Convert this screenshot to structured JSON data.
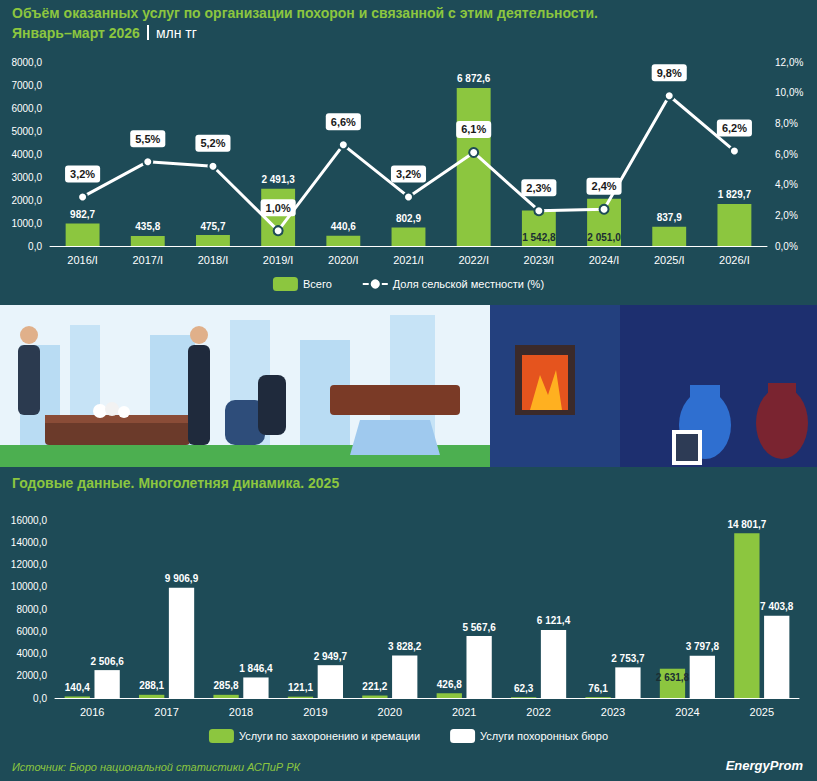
{
  "source": "Источник: Бюро национальной статистики АСПиР РК",
  "brand": "EnergyProm",
  "chart_data": [
    {
      "type": "bar",
      "title": "Объём оказанных услуг по организации похорон и связанной с этим деятельности.",
      "subtitle": "Январь–март 2026",
      "units": "млн тг",
      "categories": [
        "2016/I",
        "2017/I",
        "2018/I",
        "2019/I",
        "2020/I",
        "2021/I",
        "2022/I",
        "2023/I",
        "2024/I",
        "2025/I",
        "2026/I"
      ],
      "series": [
        {
          "name": "Всего",
          "type": "bar",
          "color": "#8cc63f",
          "values": [
            982.7,
            435.8,
            475.7,
            2491.3,
            440.6,
            802.9,
            6872.6,
            1542.8,
            2051.0,
            837.9,
            1829.7
          ],
          "value_labels": [
            "982,7",
            "435,8",
            "475,7",
            "2 491,3",
            "440,6",
            "802,9",
            "6 872,6",
            "1 542,8",
            "2 051,0",
            "837,9",
            "1 829,7"
          ]
        },
        {
          "name": "Доля сельской местности (%)",
          "type": "line",
          "axis": "y2",
          "color": "#ffffff",
          "marker": "circle",
          "line_style": "solid",
          "values": [
            3.2,
            5.5,
            5.2,
            1.0,
            6.6,
            3.2,
            6.1,
            2.3,
            2.4,
            9.8,
            6.2
          ],
          "value_labels": [
            "3,2%",
            "5,5%",
            "5,2%",
            "1,0%",
            "6,6%",
            "3,2%",
            "6,1%",
            "2,3%",
            "2,4%",
            "9,8%",
            "6,2%"
          ]
        }
      ],
      "ylim": [
        0,
        8000
      ],
      "yticks": [
        {
          "value": 0,
          "label": "0,0"
        },
        {
          "value": 1000,
          "label": "1000,0"
        },
        {
          "value": 2000,
          "label": "2000,0"
        },
        {
          "value": 3000,
          "label": "3000,0"
        },
        {
          "value": 4000,
          "label": "4000,0"
        },
        {
          "value": 5000,
          "label": "5000,0"
        },
        {
          "value": 6000,
          "label": "6000,0"
        },
        {
          "value": 7000,
          "label": "7000,0"
        },
        {
          "value": 8000,
          "label": "8000,0"
        }
      ],
      "y2lim": [
        0,
        12
      ],
      "y2ticks": [
        {
          "value": 0,
          "label": "0,0%"
        },
        {
          "value": 2,
          "label": "2,0%"
        },
        {
          "value": 4,
          "label": "4,0%"
        },
        {
          "value": 6,
          "label": "6,0%"
        },
        {
          "value": 8,
          "label": "8,0%"
        },
        {
          "value": 10,
          "label": "10,0%"
        },
        {
          "value": 12,
          "label": "12,0%"
        }
      ],
      "data_labels": true,
      "grid": false,
      "legend": "bottom"
    },
    {
      "type": "bar",
      "title": "Годовые данные. Многолетняя динамика. 2025",
      "categories": [
        "2016",
        "2017",
        "2018",
        "2019",
        "2020",
        "2021",
        "2022",
        "2023",
        "2024",
        "2025"
      ],
      "series": [
        {
          "name": "Услуги по захоронению и кремации",
          "color": "#8cc63f",
          "values": [
            140.4,
            288.1,
            285.8,
            121.1,
            221.2,
            426.8,
            62.3,
            76.1,
            2631.8,
            14801.7
          ],
          "value_labels": [
            "140,4",
            "288,1",
            "285,8",
            "121,1",
            "221,2",
            "426,8",
            "62,3",
            "76,1",
            "2 631,8",
            "14 801,7"
          ]
        },
        {
          "name": "Услуги похоронных бюро",
          "color": "#ffffff",
          "values": [
            2506.6,
            9906.9,
            1846.4,
            2949.7,
            3828.2,
            5567.6,
            6121.4,
            2753.7,
            3797.8,
            7403.8
          ],
          "value_labels": [
            "2 506,6",
            "9 906,9",
            "1 846,4",
            "2 949,7",
            "3 828,2",
            "5 567,6",
            "6 121,4",
            "2 753,7",
            "3 797,8",
            "7 403,8"
          ]
        }
      ],
      "ylim": [
        0,
        16000
      ],
      "yticks": [
        {
          "value": 0,
          "label": "0,0"
        },
        {
          "value": 2000,
          "label": "2000,0"
        },
        {
          "value": 4000,
          "label": "4000,0"
        },
        {
          "value": 6000,
          "label": "6000,0"
        },
        {
          "value": 8000,
          "label": "8000,0"
        },
        {
          "value": 10000,
          "label": "10000,0"
        },
        {
          "value": 12000,
          "label": "12000,0"
        },
        {
          "value": 14000,
          "label": "14000,0"
        },
        {
          "value": 16000,
          "label": "16000,0"
        }
      ],
      "data_labels": true,
      "grid": false,
      "legend": "bottom"
    }
  ]
}
